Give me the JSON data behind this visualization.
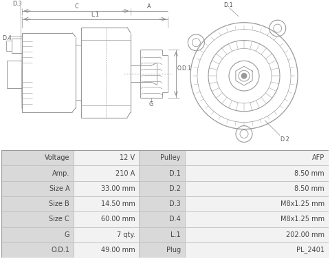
{
  "table_data": [
    [
      "Voltage",
      "12 V",
      "Pulley",
      "AFP"
    ],
    [
      "Amp.",
      "210 A",
      "D.1",
      "8.50 mm"
    ],
    [
      "Size A",
      "33.00 mm",
      "D.2",
      "8.50 mm"
    ],
    [
      "Size B",
      "14.50 mm",
      "D.3",
      "M8x1.25 mm"
    ],
    [
      "Size C",
      "60.00 mm",
      "D.4",
      "M8x1.25 mm"
    ],
    [
      "G",
      "7 qty.",
      "L.1",
      "202.00 mm"
    ],
    [
      "O.D.1",
      "49.00 mm",
      "Plug",
      "PL_2401"
    ]
  ],
  "bg_color": "#ffffff",
  "text_color": "#444444",
  "drawing_color": "#999999",
  "label_color": "#555555",
  "dim_color": "#777777",
  "font_size_table": 7.0,
  "table_label_bg": "#d9d9d9",
  "table_value_bg": "#f2f2f2",
  "table_border": "#bbbbbb"
}
